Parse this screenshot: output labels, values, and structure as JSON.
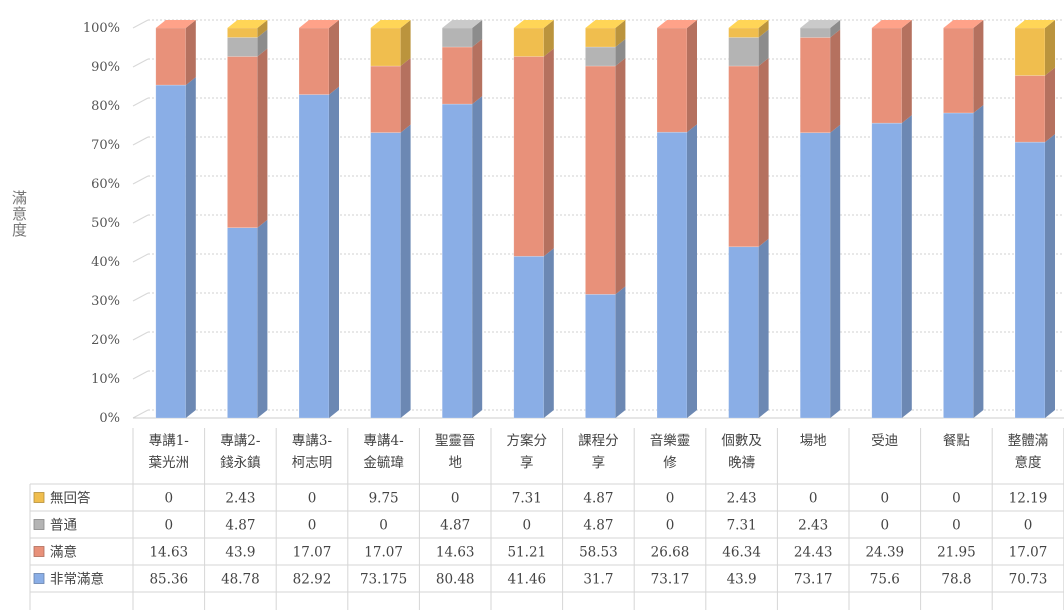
{
  "chart_data": {
    "type": "bar",
    "stacked": true,
    "percent_stacked": true,
    "ylabel": "滿意度",
    "ylim": [
      0,
      100
    ],
    "yticks": [
      "0%",
      "10%",
      "20%",
      "30%",
      "40%",
      "50%",
      "60%",
      "70%",
      "80%",
      "90%",
      "100%"
    ],
    "categories": [
      [
        "專講1-",
        "葉光洲"
      ],
      [
        "專講2-",
        "錢永鎮"
      ],
      [
        "專講3-",
        "柯志明"
      ],
      [
        "專講4-",
        "金毓瑋"
      ],
      [
        "聖靈晉",
        "地"
      ],
      [
        "方案分",
        "享"
      ],
      [
        "課程分",
        "享"
      ],
      [
        "音樂靈",
        "修"
      ],
      [
        "個數及",
        "晚禱"
      ],
      [
        "場地"
      ],
      [
        "受迪"
      ],
      [
        "餐點"
      ],
      [
        "整體滿",
        "意度"
      ]
    ],
    "series": [
      {
        "name": "非常滿意",
        "color": "#8aaee6",
        "labels": [
          "85.36",
          "48.78",
          "82.92",
          "73.175",
          "80.48",
          "41.46",
          "31.7",
          "73.17",
          "43.9",
          "73.17",
          "75.6",
          "78.8",
          "70.73"
        ],
        "values": [
          85.36,
          48.78,
          82.92,
          73.175,
          80.48,
          41.46,
          31.7,
          73.17,
          43.9,
          73.17,
          75.6,
          78.8,
          70.73
        ]
      },
      {
        "name": "滿意",
        "color": "#e8917a",
        "labels": [
          "14.63",
          "43.9",
          "17.07",
          "17.07",
          "14.63",
          "51.21",
          "58.53",
          "26.68",
          "46.34",
          "24.43",
          "24.39",
          "21.95",
          "17.07"
        ],
        "values": [
          14.63,
          43.9,
          17.07,
          17.07,
          14.63,
          51.21,
          58.53,
          26.68,
          46.34,
          24.43,
          24.39,
          21.95,
          17.07
        ]
      },
      {
        "name": "普通",
        "color": "#b4b4b4",
        "labels": [
          "0",
          "4.87",
          "0",
          "0",
          "4.87",
          "0",
          "4.87",
          "0",
          "7.31",
          "2.43",
          "0",
          "0",
          "0"
        ],
        "values": [
          0,
          4.87,
          0,
          0,
          4.87,
          0,
          4.87,
          0,
          7.31,
          2.43,
          0,
          0,
          0
        ]
      },
      {
        "name": "無回答",
        "color": "#f0be4e",
        "labels": [
          "0",
          "2.43",
          "0",
          "9.75",
          "0",
          "7.31",
          "4.87",
          "0",
          "2.43",
          "0",
          "0",
          "0",
          "12.19"
        ],
        "values": [
          0,
          2.43,
          0,
          9.75,
          0,
          7.31,
          4.87,
          0,
          2.43,
          0,
          0,
          0,
          12.19
        ]
      }
    ],
    "legend_position": "table-left",
    "grid": true
  }
}
